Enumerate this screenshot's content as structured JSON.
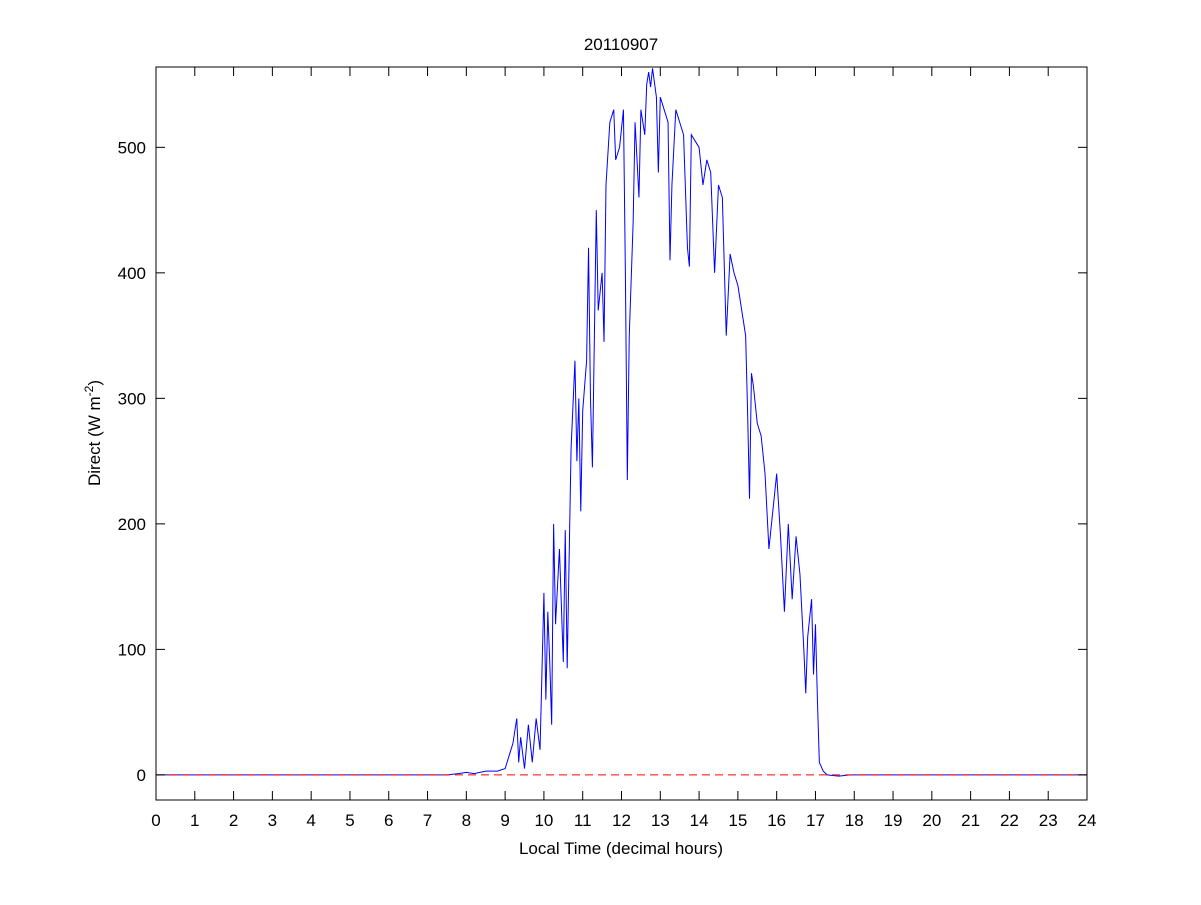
{
  "chart_data": {
    "type": "line",
    "title": "20110907",
    "xlabel": "Local Time (decimal hours)",
    "ylabel": {
      "text": "Direct (W m",
      "superscript": "-2",
      "suffix": ")"
    },
    "xlim": [
      0,
      24
    ],
    "xticks": [
      0,
      1,
      2,
      3,
      4,
      5,
      6,
      7,
      8,
      9,
      10,
      11,
      12,
      13,
      14,
      15,
      16,
      17,
      18,
      19,
      20,
      21,
      22,
      23,
      24
    ],
    "ylim": [
      -20,
      564
    ],
    "yticks": [
      0,
      100,
      200,
      300,
      400,
      500
    ],
    "grid": false,
    "series": [
      {
        "color": "#0000ff",
        "style": "solid",
        "x": [
          0,
          7.5,
          7.8,
          8.0,
          8.2,
          8.5,
          8.8,
          9.0,
          9.1,
          9.2,
          9.3,
          9.35,
          9.4,
          9.5,
          9.6,
          9.7,
          9.8,
          9.9,
          10.0,
          10.05,
          10.1,
          10.15,
          10.2,
          10.25,
          10.3,
          10.4,
          10.5,
          10.55,
          10.6,
          10.7,
          10.8,
          10.85,
          10.9,
          10.95,
          11.0,
          11.1,
          11.15,
          11.2,
          11.25,
          11.35,
          11.4,
          11.5,
          11.55,
          11.6,
          11.7,
          11.8,
          11.85,
          11.95,
          12.05,
          12.1,
          12.15,
          12.2,
          12.3,
          12.35,
          12.45,
          12.5,
          12.6,
          12.65,
          12.7,
          12.75,
          12.8,
          12.9,
          12.95,
          13.0,
          13.1,
          13.2,
          13.25,
          13.3,
          13.4,
          13.5,
          13.6,
          13.7,
          13.75,
          13.8,
          13.9,
          14.0,
          14.1,
          14.2,
          14.3,
          14.4,
          14.5,
          14.6,
          14.7,
          14.8,
          14.9,
          15.0,
          15.1,
          15.2,
          15.25,
          15.3,
          15.35,
          15.4,
          15.5,
          15.6,
          15.7,
          15.8,
          15.9,
          16.0,
          16.1,
          16.2,
          16.3,
          16.4,
          16.5,
          16.6,
          16.7,
          16.75,
          16.8,
          16.9,
          16.95,
          17.0,
          17.05,
          17.1,
          17.2,
          17.3,
          17.6,
          17.9,
          18,
          24
        ],
        "values": [
          0,
          0,
          1,
          2,
          1,
          3,
          3,
          5,
          15,
          25,
          45,
          10,
          30,
          5,
          40,
          10,
          45,
          20,
          145,
          60,
          130,
          90,
          40,
          200,
          120,
          180,
          90,
          195,
          85,
          260,
          330,
          250,
          300,
          210,
          290,
          330,
          420,
          300,
          245,
          450,
          370,
          400,
          345,
          470,
          520,
          530,
          490,
          500,
          530,
          400,
          235,
          350,
          440,
          520,
          460,
          530,
          510,
          550,
          560,
          548,
          563,
          540,
          480,
          540,
          530,
          520,
          410,
          470,
          530,
          520,
          510,
          420,
          405,
          510,
          505,
          500,
          470,
          490,
          480,
          400,
          470,
          460,
          350,
          415,
          400,
          390,
          370,
          350,
          290,
          220,
          320,
          310,
          280,
          270,
          240,
          180,
          210,
          240,
          190,
          130,
          200,
          140,
          190,
          160,
          100,
          65,
          110,
          140,
          80,
          120,
          60,
          10,
          3,
          0,
          -1,
          0,
          0,
          0
        ]
      },
      {
        "color": "#ff0000",
        "style": "dashed",
        "x": [
          0,
          24
        ],
        "values": [
          0,
          0
        ]
      }
    ]
  }
}
